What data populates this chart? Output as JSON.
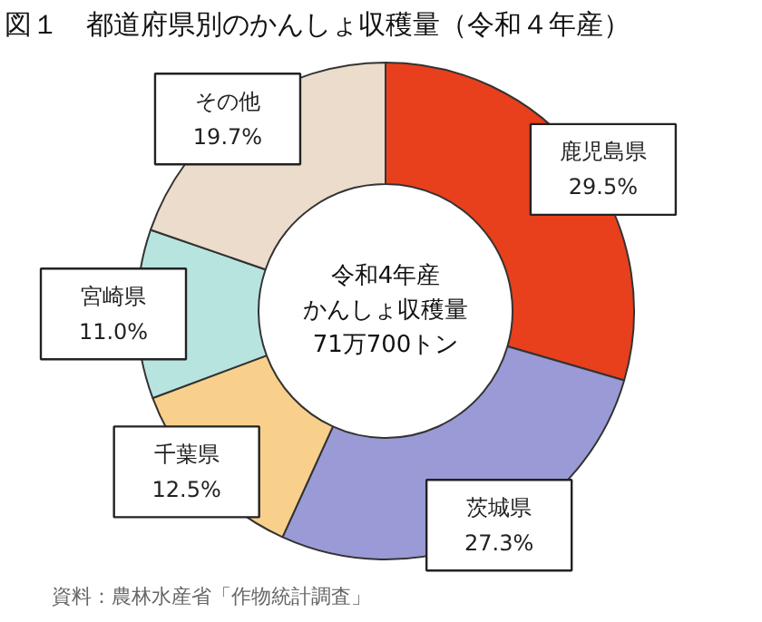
{
  "chart_data": {
    "type": "donut",
    "title": "図１　都道府県別のかんしょ収穫量（令和４年産）",
    "categories": [
      "鹿児島県",
      "茨城県",
      "千葉県",
      "宮崎県",
      "その他"
    ],
    "values": [
      29.5,
      27.3,
      12.5,
      11.0,
      19.7
    ],
    "value_labels": [
      "29.5%",
      "27.3%",
      "12.5%",
      "11.0%",
      "19.7%"
    ],
    "colors": [
      "#e8401c",
      "#9a9ad6",
      "#f8d08c",
      "#b8e4e0",
      "#ecdccc"
    ],
    "annotations": [
      "令和4年産",
      "かんしょ収穫量",
      "71万700トン",
      "資料：農林水産省「作物統計調査」"
    ]
  }
}
